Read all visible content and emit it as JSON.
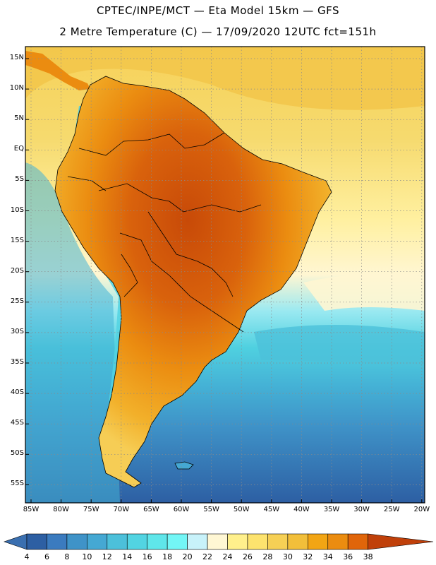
{
  "header": {
    "line1": "CPTEC/INPE/MCT —  Eta Model 15km — GFS",
    "line2": "2 Metre Temperature (C) — 17/09/2020 12UTC fct=151h"
  },
  "axes": {
    "lat_labels": [
      "15N",
      "10N",
      "5N",
      "EQ",
      "5S",
      "10S",
      "15S",
      "20S",
      "25S",
      "30S",
      "35S",
      "40S",
      "45S",
      "50S",
      "55S"
    ],
    "lon_labels": [
      "85W",
      "80W",
      "75W",
      "70W",
      "65W",
      "60W",
      "55W",
      "50W",
      "45W",
      "40W",
      "35W",
      "30W",
      "25W",
      "20W"
    ]
  },
  "colorbar": {
    "ticks": [
      "4",
      "6",
      "8",
      "10",
      "12",
      "14",
      "16",
      "18",
      "20",
      "22",
      "24",
      "26",
      "28",
      "30",
      "32",
      "34",
      "36",
      "38"
    ],
    "colors": [
      "#2d5fa3",
      "#3b7bbf",
      "#3f93c8",
      "#45a8d3",
      "#4cc0da",
      "#52d4e2",
      "#5fe6ea",
      "#73f6f6",
      "#c8f2fa",
      "#fff7d4",
      "#fff08c",
      "#fde36e",
      "#f6d055",
      "#f2bf3a",
      "#f2a514",
      "#eb8c10",
      "#e0650a",
      "#c84a08"
    ],
    "under_color": "#3a6fb0",
    "over_color": "#c0400a"
  }
}
